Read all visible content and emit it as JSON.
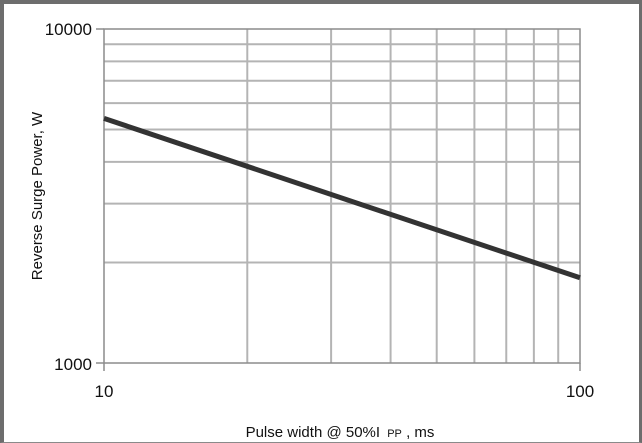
{
  "chart_data": {
    "type": "line",
    "x_scale": "log",
    "y_scale": "log",
    "xlim": [
      10,
      100
    ],
    "ylim": [
      1000,
      10000
    ],
    "x_ticks": [
      "10",
      "100"
    ],
    "y_ticks": [
      "10000",
      "1000"
    ],
    "xlabel_main": "Pulse width @ 50%I",
    "xlabel_sub": "PP",
    "xlabel_tail": " , ms",
    "ylabel": "Reverse Surge Power, W",
    "grid": true,
    "series": [
      {
        "x": [
          10,
          100
        ],
        "y": [
          5400,
          1800
        ]
      }
    ]
  }
}
